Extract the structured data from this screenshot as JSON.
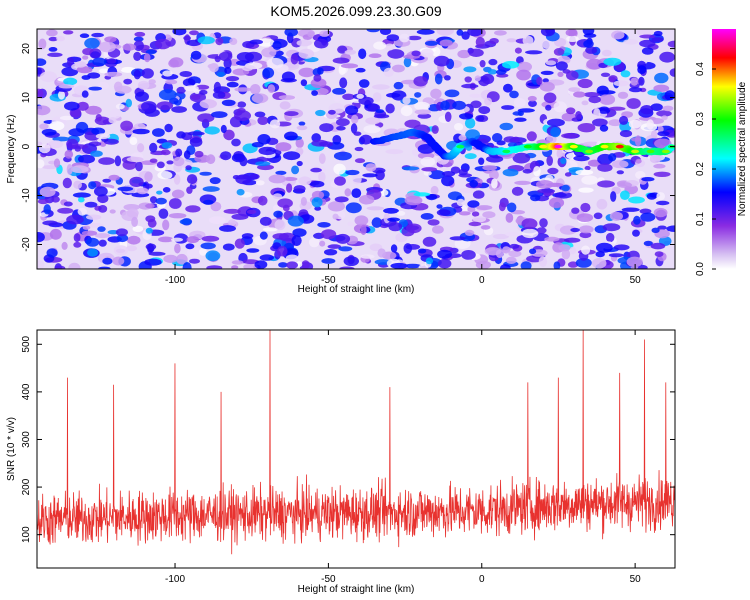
{
  "title": "KOM5.2026.099.23.30.G09",
  "chart_data": [
    {
      "type": "heatmap",
      "name": "spectrogram",
      "xlabel": "Height of straight line (km)",
      "ylabel": "Frequency (Hz)",
      "xlim": [
        -145,
        63
      ],
      "ylim": [
        -25,
        24
      ],
      "xticks": [
        -100,
        -50,
        0,
        50
      ],
      "yticks": [
        -20,
        -10,
        0,
        10,
        20
      ],
      "colorbar": {
        "label": "Normalized spectral amplitude",
        "range": [
          0,
          0.48
        ],
        "ticks": [
          0.0,
          0.1,
          0.2,
          0.3,
          0.4
        ],
        "tick_labels": [
          "0.0",
          "0.1",
          "0.2",
          "0.3",
          "0.4"
        ],
        "colors": [
          "#ffffff",
          "#8a2be2",
          "#0000ff",
          "#00ffff",
          "#00ff00",
          "#ffff00",
          "#ff0000",
          "#ff00ff"
        ]
      },
      "signal_track": {
        "x": [
          -35,
          -28,
          -22,
          -18,
          -15,
          -12,
          -10,
          -7,
          -3,
          0,
          3,
          8,
          15,
          20,
          25,
          30,
          35,
          40,
          45,
          50,
          55,
          60,
          62
        ],
        "freq": [
          1,
          2,
          3,
          2,
          0,
          -2,
          -2,
          0,
          1,
          0,
          -1,
          -1,
          0,
          0,
          0,
          0,
          -1,
          0,
          0,
          -1,
          -1,
          -1,
          0
        ],
        "amplitude": [
          0.12,
          0.14,
          0.15,
          0.12,
          0.1,
          0.12,
          0.16,
          0.2,
          0.14,
          0.08,
          0.18,
          0.2,
          0.22,
          0.3,
          0.45,
          0.3,
          0.26,
          0.3,
          0.36,
          0.28,
          0.24,
          0.26,
          0.2
        ]
      }
    },
    {
      "type": "line",
      "name": "snr",
      "xlabel": "Height of straight line (km)",
      "ylabel": "SNR (10 * v/v)",
      "xlim": [
        -145,
        63
      ],
      "ylim": [
        30,
        530
      ],
      "xticks": [
        -100,
        -50,
        0,
        50
      ],
      "yticks": [
        100,
        200,
        300,
        400,
        500
      ],
      "color": "#e8322f",
      "mean_level": [
        {
          "x": -145,
          "y": 130
        },
        {
          "x": -100,
          "y": 140
        },
        {
          "x": -50,
          "y": 145
        },
        {
          "x": 0,
          "y": 150
        },
        {
          "x": 30,
          "y": 165
        },
        {
          "x": 63,
          "y": 170
        }
      ],
      "peaks": [
        {
          "x": -69,
          "y": 530
        },
        {
          "x": 33,
          "y": 530
        },
        {
          "x": 53,
          "y": 510
        },
        {
          "x": -100,
          "y": 460
        },
        {
          "x": -135,
          "y": 430
        },
        {
          "x": -120,
          "y": 415
        },
        {
          "x": 45,
          "y": 440
        },
        {
          "x": 15,
          "y": 420
        },
        {
          "x": -30,
          "y": 410
        },
        {
          "x": 60,
          "y": 420
        },
        {
          "x": 25,
          "y": 430
        },
        {
          "x": -85,
          "y": 400
        }
      ]
    }
  ]
}
